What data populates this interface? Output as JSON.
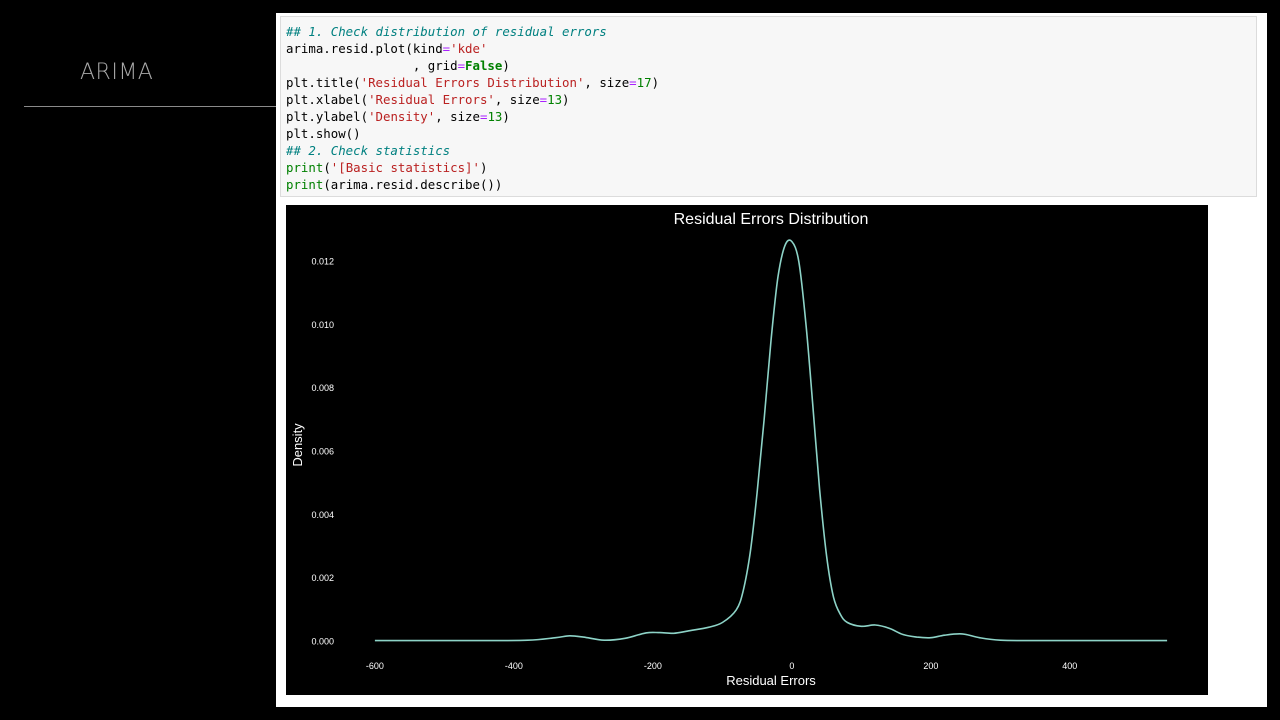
{
  "slide": {
    "title": "ARIMA"
  },
  "code_cell": {
    "lines": [
      [
        {
          "t": "## 1. Check distribution of residual errors",
          "c": "comment"
        }
      ],
      [
        {
          "t": "arima.resid.plot(kind",
          "c": ""
        },
        {
          "t": "=",
          "c": "op"
        },
        {
          "t": "'kde'",
          "c": "str"
        }
      ],
      [
        {
          "t": "                 , grid",
          "c": ""
        },
        {
          "t": "=",
          "c": "op"
        },
        {
          "t": "False",
          "c": "kw"
        },
        {
          "t": ")",
          "c": ""
        }
      ],
      [
        {
          "t": "plt.title(",
          "c": ""
        },
        {
          "t": "'Residual Errors Distribution'",
          "c": "str"
        },
        {
          "t": ", size",
          "c": ""
        },
        {
          "t": "=",
          "c": "op"
        },
        {
          "t": "17",
          "c": "num"
        },
        {
          "t": ")",
          "c": ""
        }
      ],
      [
        {
          "t": "plt.xlabel(",
          "c": ""
        },
        {
          "t": "'Residual Errors'",
          "c": "str"
        },
        {
          "t": ", size",
          "c": ""
        },
        {
          "t": "=",
          "c": "op"
        },
        {
          "t": "13",
          "c": "num"
        },
        {
          "t": ")",
          "c": ""
        }
      ],
      [
        {
          "t": "plt.ylabel(",
          "c": ""
        },
        {
          "t": "'Density'",
          "c": "str"
        },
        {
          "t": ", size",
          "c": ""
        },
        {
          "t": "=",
          "c": "op"
        },
        {
          "t": "13",
          "c": "num"
        },
        {
          "t": ")",
          "c": ""
        }
      ],
      [
        {
          "t": "plt.show()",
          "c": ""
        }
      ],
      [
        {
          "t": "## 2. Check statistics",
          "c": "comment"
        }
      ],
      [
        {
          "t": "print",
          "c": "builtin"
        },
        {
          "t": "(",
          "c": ""
        },
        {
          "t": "'[Basic statistics]'",
          "c": "str"
        },
        {
          "t": ")",
          "c": ""
        }
      ],
      [
        {
          "t": "print",
          "c": "builtin"
        },
        {
          "t": "(arima.resid.describe())",
          "c": ""
        }
      ]
    ]
  },
  "chart_data": {
    "type": "line",
    "title": "Residual Errors Distribution",
    "xlabel": "Residual Errors",
    "ylabel": "Density",
    "xlim": [
      -620,
      560
    ],
    "ylim": [
      -0.0003,
      0.0129
    ],
    "xticks": [
      "-600",
      "-400",
      "-200",
      "0",
      "200",
      "400"
    ],
    "xtick_values": [
      -600,
      -400,
      -200,
      0,
      200,
      400
    ],
    "yticks": [
      "0.000",
      "0.002",
      "0.004",
      "0.006",
      "0.008",
      "0.010",
      "0.012"
    ],
    "ytick_values": [
      0,
      0.002,
      0.004,
      0.006,
      0.008,
      0.01,
      0.012
    ],
    "grid": false,
    "line_color": "#8dd3c7",
    "series": [
      {
        "x": [
          -600,
          -520,
          -450,
          -380,
          -340,
          -320,
          -300,
          -270,
          -240,
          -210,
          -190,
          -170,
          -150,
          -120,
          -100,
          -80,
          -70,
          -60,
          -50,
          -40,
          -30,
          -20,
          -10,
          0,
          10,
          20,
          30,
          40,
          50,
          60,
          70,
          80,
          100,
          120,
          140,
          160,
          180,
          200,
          220,
          245,
          270,
          300,
          350,
          450,
          540
        ],
        "y": [
          3e-05,
          3e-05,
          3e-05,
          4e-05,
          0.00012,
          0.00018,
          0.00014,
          4e-05,
          0.0001,
          0.00027,
          0.00028,
          0.00026,
          0.00033,
          0.00045,
          0.0006,
          0.001,
          0.0016,
          0.0028,
          0.0047,
          0.007,
          0.0095,
          0.0115,
          0.0125,
          0.01263,
          0.012,
          0.0101,
          0.0075,
          0.0048,
          0.0027,
          0.0014,
          0.00085,
          0.0006,
          0.00048,
          0.00052,
          0.00042,
          0.00022,
          0.00014,
          0.00012,
          0.0002,
          0.00024,
          0.00012,
          4e-05,
          3e-05,
          3e-05,
          3e-05
        ]
      }
    ]
  }
}
